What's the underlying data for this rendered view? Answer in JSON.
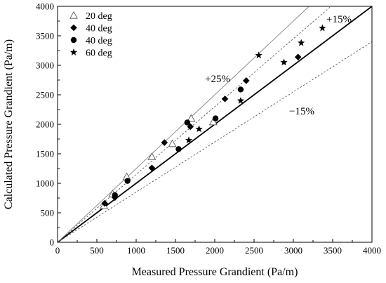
{
  "chart_data": {
    "type": "scatter",
    "xlabel": "Measured Pressure Grandient (Pa/m)",
    "ylabel": "Calculated Pressure Grandient (Pa/m)",
    "xlim": [
      0,
      4000
    ],
    "ylim": [
      0,
      4000
    ],
    "x_ticks": [
      "0",
      "500",
      "1000",
      "1500",
      "2000",
      "2500",
      "3000",
      "3500",
      "4000"
    ],
    "y_ticks": [
      "0",
      "500",
      "1000",
      "1500",
      "2000",
      "2500",
      "3000",
      "3500",
      "4000"
    ],
    "grid": false,
    "legend_position": "top-left",
    "series": [
      {
        "name": "20 deg",
        "marker": "open-triangle",
        "x": [
          590,
          700,
          880,
          1200,
          1460,
          1700,
          1980
        ],
        "y": [
          620,
          820,
          1110,
          1450,
          1670,
          2100,
          2040
        ]
      },
      {
        "name": "40 deg",
        "marker": "filled-diamond",
        "x": [
          600,
          730,
          1200,
          1360,
          1690,
          2130,
          2400,
          3060
        ],
        "y": [
          660,
          760,
          1260,
          1690,
          1960,
          2430,
          2740,
          3140
        ]
      },
      {
        "name": "40 deg",
        "marker": "filled-circle",
        "x": [
          730,
          890,
          1540,
          1650,
          2010,
          2330
        ],
        "y": [
          800,
          1040,
          1580,
          2030,
          2100,
          2590
        ]
      },
      {
        "name": "60 deg",
        "marker": "filled-star",
        "x": [
          1670,
          1800,
          2330,
          2560,
          2880,
          3100,
          3370
        ],
        "y": [
          1730,
          1920,
          2400,
          3170,
          3050,
          3380,
          3630
        ]
      }
    ],
    "reference_lines": [
      {
        "label": "",
        "slope": 1.0,
        "style": "solid-thick"
      },
      {
        "label": "+25%",
        "slope": 1.25,
        "style": "solid-thin"
      },
      {
        "label": "+15%",
        "slope": 1.15,
        "style": "dotted"
      },
      {
        "label": "−15%",
        "slope": 0.85,
        "style": "dotted"
      }
    ],
    "colors": {
      "markers": "#000000",
      "axes": "#000000",
      "ref_thin": "#808080"
    }
  }
}
